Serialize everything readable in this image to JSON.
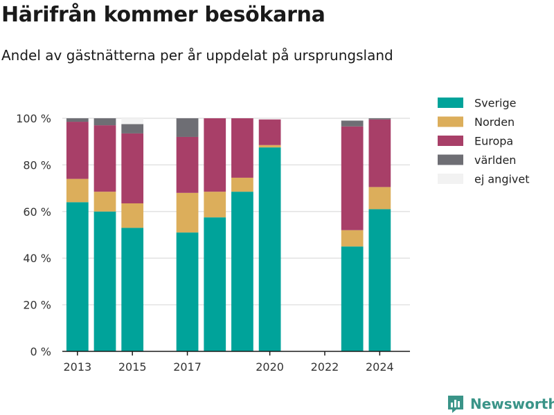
{
  "header": {
    "title": "Härifrån kommer besökarna",
    "subtitle": "Andel av gästnätterna per år uppdelat på ursprungsland"
  },
  "brand": {
    "label": "Newsworthy",
    "icon": "chart-logo-icon",
    "color": "#3a9488"
  },
  "chart_data": {
    "type": "bar",
    "stacked": true,
    "title": "Härifrån kommer besökarna",
    "subtitle": "Andel av gästnätterna per år uppdelat på ursprungsland",
    "x": [
      2013,
      2014,
      2015,
      2016,
      2017,
      2018,
      2019,
      2020,
      2021,
      2022,
      2023,
      2024
    ],
    "x_tick_labels": [
      "2013",
      "2015",
      "2017",
      "2020",
      "2022",
      "2024"
    ],
    "x_tick_values": [
      2013,
      2015,
      2017,
      2020,
      2022,
      2024
    ],
    "ylim": [
      0,
      100
    ],
    "y_ticks": [
      0,
      20,
      40,
      60,
      80,
      100
    ],
    "y_tick_labels": [
      "0 %",
      "20 %",
      "40 %",
      "60 %",
      "80 %",
      "100 %"
    ],
    "grid": true,
    "legend_position": "right",
    "series": [
      {
        "name": "Sverige",
        "color": "#00a39a",
        "values": [
          64,
          60,
          53,
          null,
          51,
          57.5,
          68.5,
          87.5,
          null,
          null,
          45,
          61
        ]
      },
      {
        "name": "Norden",
        "color": "#dcae5b",
        "values": [
          10,
          8.5,
          10.5,
          null,
          17,
          11,
          6,
          1,
          null,
          null,
          7,
          9.5
        ]
      },
      {
        "name": "Europa",
        "color": "#a83f68",
        "values": [
          24.5,
          28.5,
          30,
          null,
          24,
          31.5,
          25.5,
          11,
          null,
          null,
          44.5,
          29
        ]
      },
      {
        "name": "världen",
        "color": "#6e6e74",
        "values": [
          1.5,
          3,
          4,
          null,
          8,
          0,
          0,
          0,
          null,
          null,
          2.5,
          0.5
        ]
      },
      {
        "name": "ej angivet",
        "color": "#f2f2f2",
        "values": [
          0,
          0,
          2.5,
          null,
          0,
          0,
          0,
          0,
          null,
          null,
          0,
          0
        ]
      }
    ]
  }
}
